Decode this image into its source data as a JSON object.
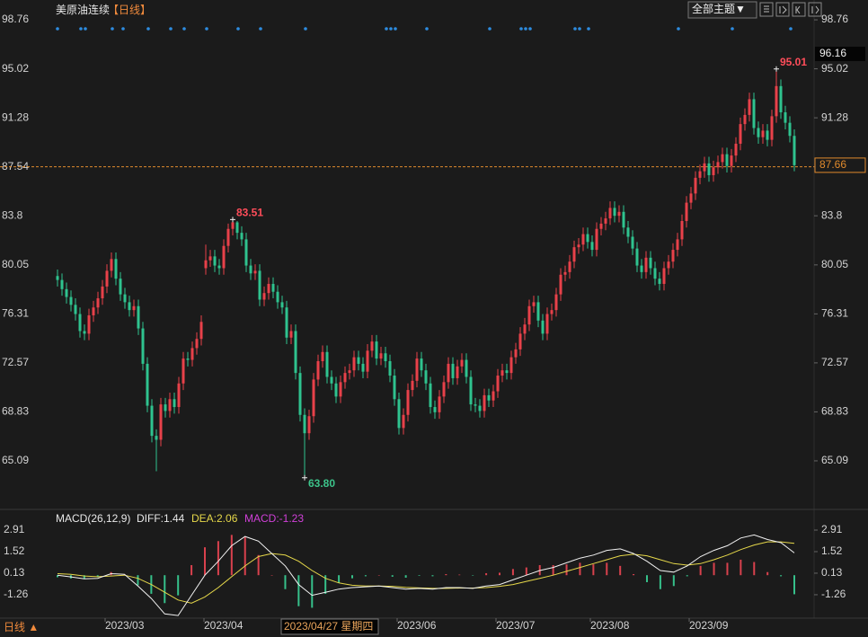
{
  "chart_data": {
    "type": "candlestick",
    "title": "美原油连续",
    "period_tag": "【日线】",
    "toolbar_button": "全部主题▼",
    "period_switch": "日线 ▲",
    "up_color": "#e8414a",
    "down_color": "#2fc38f",
    "ylim": [
      61.52,
      99.45
    ],
    "yticks": [
      98.76,
      95.02,
      91.28,
      87.54,
      83.8,
      80.05,
      76.31,
      72.57,
      68.83,
      65.09
    ],
    "reference_line": 87.54,
    "xticks": [
      {
        "value": 11,
        "label": "2023/03"
      },
      {
        "value": 33,
        "label": "2023/04"
      },
      {
        "value": 76,
        "label": "2023/06"
      },
      {
        "value": 98,
        "label": "2023/07"
      },
      {
        "value": 119,
        "label": "2023/08"
      },
      {
        "value": 141,
        "label": "2023/09"
      }
    ],
    "crosshair": {
      "price": 96.16,
      "date": "2023/04/27 星期四"
    },
    "annotations": [
      {
        "value": 83.51,
        "label": "83.51",
        "color": "#ff4d5a"
      },
      {
        "value": 63.8,
        "label": "63.80",
        "color": "#3cc38a"
      },
      {
        "value": 95.01,
        "label": "95.01",
        "color": "#ff4d5a"
      }
    ],
    "ohlc": [
      [
        79.2,
        79.7,
        78.4,
        78.9
      ],
      [
        78.9,
        79.4,
        77.7,
        78.2
      ],
      [
        78.2,
        78.7,
        77.1,
        77.6
      ],
      [
        77.6,
        78.1,
        76.5,
        77.0
      ],
      [
        77.0,
        77.5,
        75.8,
        76.3
      ],
      [
        76.3,
        76.8,
        74.5,
        75.0
      ],
      [
        75.0,
        75.5,
        74.3,
        74.8
      ],
      [
        74.8,
        76.7,
        74.3,
        76.2
      ],
      [
        76.2,
        77.3,
        75.7,
        76.8
      ],
      [
        76.8,
        78.0,
        76.3,
        77.5
      ],
      [
        77.5,
        78.9,
        77.0,
        78.4
      ],
      [
        78.4,
        80.1,
        77.9,
        79.6
      ],
      [
        79.6,
        81.0,
        79.1,
        80.5
      ],
      [
        80.5,
        81.0,
        78.5,
        79.0
      ],
      [
        79.0,
        79.5,
        77.3,
        77.8
      ],
      [
        77.8,
        78.3,
        76.7,
        77.2
      ],
      [
        77.2,
        77.7,
        76.1,
        76.6
      ],
      [
        76.6,
        77.4,
        76.1,
        76.9
      ],
      [
        76.9,
        77.4,
        74.7,
        75.2
      ],
      [
        75.2,
        75.7,
        72.0,
        72.5
      ],
      [
        72.5,
        73.0,
        68.8,
        69.3
      ],
      [
        69.3,
        69.8,
        66.5,
        67.0
      ],
      [
        67.0,
        67.5,
        64.3,
        66.7
      ],
      [
        66.7,
        69.9,
        66.2,
        69.4
      ],
      [
        69.4,
        69.9,
        68.4,
        68.9
      ],
      [
        68.9,
        70.3,
        68.4,
        69.8
      ],
      [
        69.8,
        70.3,
        68.7,
        69.2
      ],
      [
        69.2,
        71.5,
        68.7,
        71.0
      ],
      [
        71.0,
        73.4,
        70.5,
        72.9
      ],
      [
        72.9,
        73.4,
        72.3,
        72.8
      ],
      [
        72.8,
        74.2,
        72.3,
        73.7
      ],
      [
        73.7,
        74.9,
        73.2,
        74.4
      ],
      [
        74.4,
        76.2,
        73.9,
        75.7
      ],
      [
        79.8,
        81.6,
        79.3,
        80.4
      ],
      [
        80.4,
        81.2,
        79.9,
        80.7
      ],
      [
        80.7,
        81.2,
        79.5,
        80.0
      ],
      [
        80.0,
        80.5,
        79.3,
        79.8
      ],
      [
        79.8,
        82.0,
        79.3,
        81.5
      ],
      [
        81.5,
        83.2,
        81.0,
        82.8
      ],
      [
        82.8,
        83.51,
        82.3,
        83.3
      ],
      [
        83.3,
        83.4,
        82.0,
        82.5
      ],
      [
        82.5,
        83.0,
        81.5,
        82.0
      ],
      [
        82.0,
        82.5,
        79.5,
        80.0
      ],
      [
        80.0,
        80.5,
        78.9,
        79.4
      ],
      [
        79.4,
        80.1,
        78.9,
        79.6
      ],
      [
        79.6,
        80.1,
        76.9,
        77.4
      ],
      [
        77.4,
        78.4,
        76.9,
        77.9
      ],
      [
        77.9,
        79.1,
        77.4,
        78.6
      ],
      [
        78.6,
        79.1,
        77.5,
        78.0
      ],
      [
        78.0,
        78.5,
        76.7,
        77.2
      ],
      [
        77.2,
        77.7,
        76.3,
        76.8
      ],
      [
        76.8,
        77.3,
        74.0,
        74.5
      ],
      [
        74.5,
        75.5,
        74.0,
        75.0
      ],
      [
        75.0,
        75.5,
        71.3,
        71.8
      ],
      [
        71.8,
        72.3,
        68.1,
        68.6
      ],
      [
        68.6,
        69.1,
        63.8,
        67.2
      ],
      [
        67.2,
        69.0,
        66.7,
        68.5
      ],
      [
        68.5,
        71.8,
        68.0,
        71.3
      ],
      [
        71.3,
        73.2,
        70.8,
        72.7
      ],
      [
        72.7,
        73.9,
        72.2,
        73.4
      ],
      [
        73.4,
        73.9,
        71.0,
        71.5
      ],
      [
        71.5,
        72.0,
        70.5,
        71.0
      ],
      [
        71.0,
        71.5,
        69.5,
        70.0
      ],
      [
        70.0,
        71.6,
        69.5,
        71.1
      ],
      [
        71.1,
        72.3,
        70.6,
        71.8
      ],
      [
        71.8,
        72.5,
        71.3,
        72.0
      ],
      [
        72.0,
        73.5,
        71.5,
        73.0
      ],
      [
        73.0,
        73.5,
        72.0,
        72.5
      ],
      [
        72.5,
        73.0,
        71.4,
        71.9
      ],
      [
        71.9,
        74.0,
        71.4,
        73.5
      ],
      [
        73.5,
        74.7,
        73.0,
        74.2
      ],
      [
        74.2,
        74.7,
        72.4,
        72.9
      ],
      [
        72.9,
        73.8,
        72.4,
        73.3
      ],
      [
        73.3,
        73.8,
        72.2,
        72.7
      ],
      [
        72.7,
        73.2,
        71.1,
        71.6
      ],
      [
        71.6,
        72.1,
        69.3,
        69.8
      ],
      [
        69.8,
        70.3,
        67.1,
        67.6
      ],
      [
        67.6,
        69.1,
        67.1,
        68.6
      ],
      [
        68.6,
        71.0,
        68.1,
        70.5
      ],
      [
        70.5,
        71.7,
        70.0,
        71.2
      ],
      [
        71.2,
        73.4,
        70.7,
        72.9
      ],
      [
        72.9,
        73.4,
        71.5,
        72.0
      ],
      [
        72.0,
        72.5,
        70.5,
        71.0
      ],
      [
        71.0,
        71.5,
        68.7,
        69.2
      ],
      [
        69.2,
        69.7,
        68.3,
        68.8
      ],
      [
        68.8,
        70.5,
        68.3,
        70.0
      ],
      [
        70.0,
        71.6,
        69.5,
        71.1
      ],
      [
        71.1,
        73.0,
        70.6,
        72.5
      ],
      [
        72.5,
        73.0,
        70.9,
        71.4
      ],
      [
        71.4,
        72.8,
        70.9,
        72.3
      ],
      [
        72.3,
        73.3,
        71.8,
        72.8
      ],
      [
        72.8,
        73.3,
        71.0,
        71.5
      ],
      [
        71.5,
        72.0,
        68.9,
        69.4
      ],
      [
        69.4,
        69.9,
        68.8,
        69.3
      ],
      [
        69.3,
        69.8,
        68.4,
        68.9
      ],
      [
        68.9,
        70.6,
        68.4,
        70.1
      ],
      [
        70.1,
        70.6,
        69.2,
        69.7
      ],
      [
        69.7,
        70.9,
        69.2,
        70.4
      ],
      [
        70.4,
        72.1,
        69.9,
        71.6
      ],
      [
        71.6,
        72.5,
        71.1,
        72.0
      ],
      [
        72.0,
        72.5,
        71.3,
        71.8
      ],
      [
        71.8,
        73.5,
        71.3,
        73.0
      ],
      [
        73.0,
        74.1,
        72.5,
        73.6
      ],
      [
        73.6,
        75.3,
        73.1,
        74.8
      ],
      [
        74.8,
        76.0,
        74.3,
        75.5
      ],
      [
        75.5,
        77.4,
        75.0,
        76.9
      ],
      [
        76.9,
        77.7,
        76.4,
        77.2
      ],
      [
        77.2,
        77.7,
        75.3,
        75.8
      ],
      [
        75.8,
        76.3,
        74.3,
        74.8
      ],
      [
        74.8,
        76.8,
        74.3,
        76.3
      ],
      [
        76.3,
        77.1,
        75.8,
        76.6
      ],
      [
        76.6,
        78.3,
        76.1,
        77.8
      ],
      [
        77.8,
        79.8,
        77.3,
        79.3
      ],
      [
        79.3,
        80.0,
        78.8,
        79.5
      ],
      [
        79.5,
        80.8,
        79.0,
        80.3
      ],
      [
        80.3,
        81.9,
        79.8,
        81.4
      ],
      [
        81.4,
        82.1,
        80.9,
        81.6
      ],
      [
        81.6,
        82.9,
        81.1,
        82.4
      ],
      [
        82.4,
        82.9,
        81.3,
        81.8
      ],
      [
        81.8,
        82.3,
        80.7,
        81.2
      ],
      [
        81.2,
        83.3,
        80.7,
        82.8
      ],
      [
        82.8,
        83.7,
        82.3,
        83.2
      ],
      [
        83.2,
        84.1,
        82.7,
        83.6
      ],
      [
        83.6,
        84.9,
        83.1,
        84.4
      ],
      [
        84.4,
        84.9,
        83.3,
        83.8
      ],
      [
        83.8,
        84.6,
        83.3,
        84.1
      ],
      [
        84.1,
        84.6,
        82.4,
        82.9
      ],
      [
        82.9,
        83.4,
        81.7,
        82.2
      ],
      [
        82.2,
        82.7,
        80.8,
        81.3
      ],
      [
        81.3,
        81.8,
        79.5,
        80.0
      ],
      [
        80.0,
        80.5,
        79.0,
        79.5
      ],
      [
        79.5,
        81.1,
        79.0,
        80.6
      ],
      [
        80.6,
        81.1,
        79.3,
        79.8
      ],
      [
        79.8,
        80.3,
        78.5,
        79.0
      ],
      [
        79.0,
        79.5,
        78.1,
        78.6
      ],
      [
        78.6,
        80.3,
        78.1,
        79.8
      ],
      [
        79.8,
        80.8,
        79.3,
        80.3
      ],
      [
        80.3,
        81.7,
        79.8,
        81.2
      ],
      [
        81.2,
        82.5,
        80.7,
        82.0
      ],
      [
        82.0,
        83.9,
        81.5,
        83.4
      ],
      [
        83.4,
        85.3,
        82.9,
        84.8
      ],
      [
        84.8,
        86.0,
        84.3,
        85.5
      ],
      [
        85.5,
        87.2,
        85.0,
        86.7
      ],
      [
        86.7,
        87.7,
        86.2,
        87.2
      ],
      [
        87.2,
        88.3,
        86.7,
        87.8
      ],
      [
        87.8,
        88.3,
        86.4,
        86.9
      ],
      [
        86.9,
        88.0,
        86.4,
        87.5
      ],
      [
        87.5,
        88.4,
        87.0,
        87.9
      ],
      [
        87.9,
        89.0,
        87.4,
        88.5
      ],
      [
        88.5,
        89.0,
        87.1,
        87.6
      ],
      [
        87.6,
        88.9,
        87.1,
        88.4
      ],
      [
        88.4,
        89.8,
        87.9,
        89.3
      ],
      [
        89.3,
        91.3,
        88.8,
        90.8
      ],
      [
        90.8,
        92.0,
        90.3,
        91.5
      ],
      [
        91.5,
        93.2,
        91.0,
        92.7
      ],
      [
        92.7,
        93.2,
        90.0,
        90.5
      ],
      [
        90.5,
        91.0,
        89.3,
        89.8
      ],
      [
        89.8,
        90.8,
        89.3,
        90.3
      ],
      [
        90.3,
        90.8,
        89.1,
        89.6
      ],
      [
        89.6,
        91.9,
        89.1,
        91.4
      ],
      [
        91.4,
        95.01,
        90.9,
        93.7
      ],
      [
        93.7,
        94.2,
        91.2,
        91.7
      ],
      [
        91.7,
        92.2,
        90.4,
        90.9
      ],
      [
        90.9,
        91.4,
        89.4,
        89.9
      ],
      [
        89.9,
        90.4,
        87.2,
        87.66
      ]
    ],
    "macd": {
      "header": "MACD(26,12,9)",
      "diff_label": "DIFF:1.44",
      "dea_label": "DEA:2.06",
      "macd_label": "MACD:-1.23",
      "ylim": [
        -2.77,
        3.2
      ],
      "yticks": [
        2.91,
        1.52,
        0.13,
        -1.26
      ],
      "diff_color": "#f2f2f2",
      "dea_color": "#e6d84a",
      "diff_label_color": "#e8e8e8",
      "dea_label_color": "#e6d84a",
      "macd_label_color": "#d040d8",
      "diff": [
        0.0,
        -0.11,
        -0.23,
        -0.2,
        0.1,
        0.05,
        -0.7,
        -1.5,
        -2.5,
        -2.6,
        -1.3,
        0.0,
        0.9,
        1.9,
        2.5,
        2.2,
        1.4,
        0.6,
        -0.6,
        -1.3,
        -1.1,
        -0.9,
        -0.8,
        -0.75,
        -0.7,
        -0.8,
        -0.9,
        -0.85,
        -0.9,
        -0.8,
        -0.8,
        -0.85,
        -0.7,
        -0.6,
        -0.3,
        0.0,
        0.3,
        0.5,
        0.8,
        1.1,
        1.3,
        1.6,
        1.7,
        1.4,
        0.9,
        0.3,
        0.2,
        0.6,
        1.2,
        1.6,
        1.9,
        2.4,
        2.6,
        2.3,
        2.1,
        1.44
      ],
      "dea": [
        0.1,
        0.05,
        -0.05,
        -0.1,
        -0.05,
        0.0,
        -0.2,
        -0.6,
        -1.1,
        -1.6,
        -1.8,
        -1.4,
        -0.8,
        -0.1,
        0.6,
        1.2,
        1.4,
        1.3,
        0.9,
        0.3,
        -0.2,
        -0.5,
        -0.65,
        -0.7,
        -0.7,
        -0.72,
        -0.78,
        -0.82,
        -0.85,
        -0.85,
        -0.83,
        -0.83,
        -0.8,
        -0.72,
        -0.6,
        -0.4,
        -0.2,
        0.0,
        0.25,
        0.5,
        0.75,
        1.0,
        1.25,
        1.35,
        1.25,
        1.0,
        0.75,
        0.65,
        0.75,
        1.0,
        1.3,
        1.65,
        1.95,
        2.15,
        2.15,
        2.06
      ],
      "hist": [
        -0.13,
        -0.21,
        -0.23,
        -0.13,
        0.2,
        0.07,
        -0.65,
        -1.2,
        -1.8,
        -1.3,
        0.65,
        1.8,
        2.2,
        2.6,
        2.5,
        1.3,
        0.0,
        -0.9,
        -2.0,
        -2.1,
        -1.2,
        -0.5,
        -0.2,
        -0.07,
        0.0,
        -0.1,
        -0.16,
        -0.04,
        -0.07,
        0.07,
        0.04,
        -0.03,
        0.13,
        0.16,
        0.4,
        0.5,
        0.65,
        0.65,
        0.7,
        0.8,
        0.7,
        0.8,
        0.6,
        0.07,
        -0.45,
        -0.9,
        -0.7,
        -0.07,
        0.6,
        0.8,
        0.8,
        1.0,
        0.85,
        0.2,
        -0.07,
        -1.23
      ]
    }
  }
}
